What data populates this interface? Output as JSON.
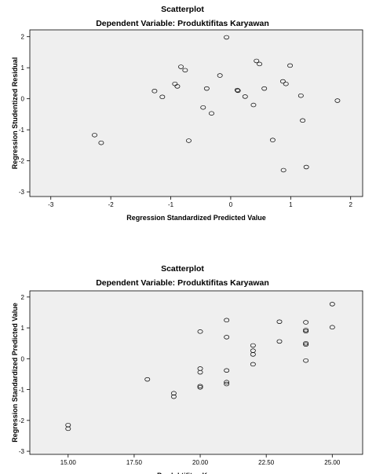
{
  "chart_data": [
    {
      "type": "scatter",
      "title": "Scatterplot",
      "subtitle": "Dependent Variable: Produktifitas Karyawan",
      "xlabel": "Regression Standardized Predicted Value",
      "ylabel": "Regression Studentized Residual",
      "xlim": [
        -3.35,
        2.2
      ],
      "ylim": [
        -3.15,
        2.22
      ],
      "xticks": [
        -3,
        -2,
        -1,
        0,
        1,
        2
      ],
      "xtick_labels": [
        "-3",
        "-2",
        "-1",
        "0",
        "1",
        "2"
      ],
      "yticks": [
        -3,
        -2,
        -1,
        0,
        1,
        2
      ],
      "ytick_labels": [
        "-3",
        "-2",
        "-1",
        "0",
        "1",
        "2"
      ],
      "grid": false,
      "points": [
        {
          "x": -2.27,
          "y": -1.17
        },
        {
          "x": -2.16,
          "y": -1.42
        },
        {
          "x": -1.27,
          "y": 0.25
        },
        {
          "x": -1.14,
          "y": 0.06
        },
        {
          "x": -0.93,
          "y": 0.48
        },
        {
          "x": -0.89,
          "y": 0.4
        },
        {
          "x": -0.83,
          "y": 1.03
        },
        {
          "x": -0.76,
          "y": 0.92
        },
        {
          "x": -0.7,
          "y": -1.35
        },
        {
          "x": -0.46,
          "y": -0.28
        },
        {
          "x": -0.4,
          "y": 0.33
        },
        {
          "x": -0.32,
          "y": -0.47
        },
        {
          "x": -0.18,
          "y": 0.75
        },
        {
          "x": -0.07,
          "y": 1.98
        },
        {
          "x": 0.11,
          "y": 0.28
        },
        {
          "x": 0.12,
          "y": 0.26
        },
        {
          "x": 0.24,
          "y": 0.07
        },
        {
          "x": 0.38,
          "y": -0.2
        },
        {
          "x": 0.43,
          "y": 1.22
        },
        {
          "x": 0.48,
          "y": 1.12
        },
        {
          "x": 0.56,
          "y": 0.33
        },
        {
          "x": 0.7,
          "y": -1.33
        },
        {
          "x": 0.87,
          "y": 0.56
        },
        {
          "x": 0.88,
          "y": -2.3
        },
        {
          "x": 0.92,
          "y": 0.48
        },
        {
          "x": 0.99,
          "y": 1.07
        },
        {
          "x": 1.17,
          "y": 0.1
        },
        {
          "x": 1.2,
          "y": -0.7
        },
        {
          "x": 1.26,
          "y": -2.2
        },
        {
          "x": 1.78,
          "y": -0.06
        }
      ]
    },
    {
      "type": "scatter",
      "title": "Scatterplot",
      "subtitle": "Dependent Variable: Produktifitas Karyawan",
      "xlabel": "Produktifitas Karyawan",
      "ylabel": "Regression Standardized Predicted Value",
      "xlim": [
        13.55,
        26.15
      ],
      "ylim": [
        -3.1,
        2.2
      ],
      "xticks": [
        15,
        17.5,
        20,
        22.5,
        25
      ],
      "xtick_labels": [
        "15.00",
        "17.50",
        "20.00",
        "22.50",
        "25.00"
      ],
      "yticks": [
        -3,
        -2,
        -1,
        0,
        1,
        2
      ],
      "ytick_labels": [
        "-3",
        "-2",
        "-1",
        "0",
        "1",
        "2"
      ],
      "grid": false,
      "points": [
        {
          "x": 15,
          "y": -2.15
        },
        {
          "x": 15,
          "y": -2.27
        },
        {
          "x": 18,
          "y": -0.67
        },
        {
          "x": 19,
          "y": -1.12
        },
        {
          "x": 19,
          "y": -1.23
        },
        {
          "x": 20,
          "y": 0.88
        },
        {
          "x": 20,
          "y": -0.32
        },
        {
          "x": 20,
          "y": -0.44
        },
        {
          "x": 20,
          "y": -0.89
        },
        {
          "x": 20,
          "y": -0.93
        },
        {
          "x": 21,
          "y": 1.25
        },
        {
          "x": 21,
          "y": 0.7
        },
        {
          "x": 21,
          "y": -0.38
        },
        {
          "x": 21,
          "y": -0.76
        },
        {
          "x": 21,
          "y": -0.82
        },
        {
          "x": 22,
          "y": 0.43
        },
        {
          "x": 22,
          "y": 0.26
        },
        {
          "x": 22,
          "y": 0.14
        },
        {
          "x": 22,
          "y": -0.18
        },
        {
          "x": 23,
          "y": 1.2
        },
        {
          "x": 23,
          "y": 0.56
        },
        {
          "x": 24,
          "y": 1.18
        },
        {
          "x": 24,
          "y": 0.93
        },
        {
          "x": 24,
          "y": 0.89
        },
        {
          "x": 24,
          "y": 0.5
        },
        {
          "x": 24,
          "y": 0.46
        },
        {
          "x": 24,
          "y": -0.06
        },
        {
          "x": 25,
          "y": 1.77
        },
        {
          "x": 25,
          "y": 1.02
        }
      ]
    }
  ]
}
